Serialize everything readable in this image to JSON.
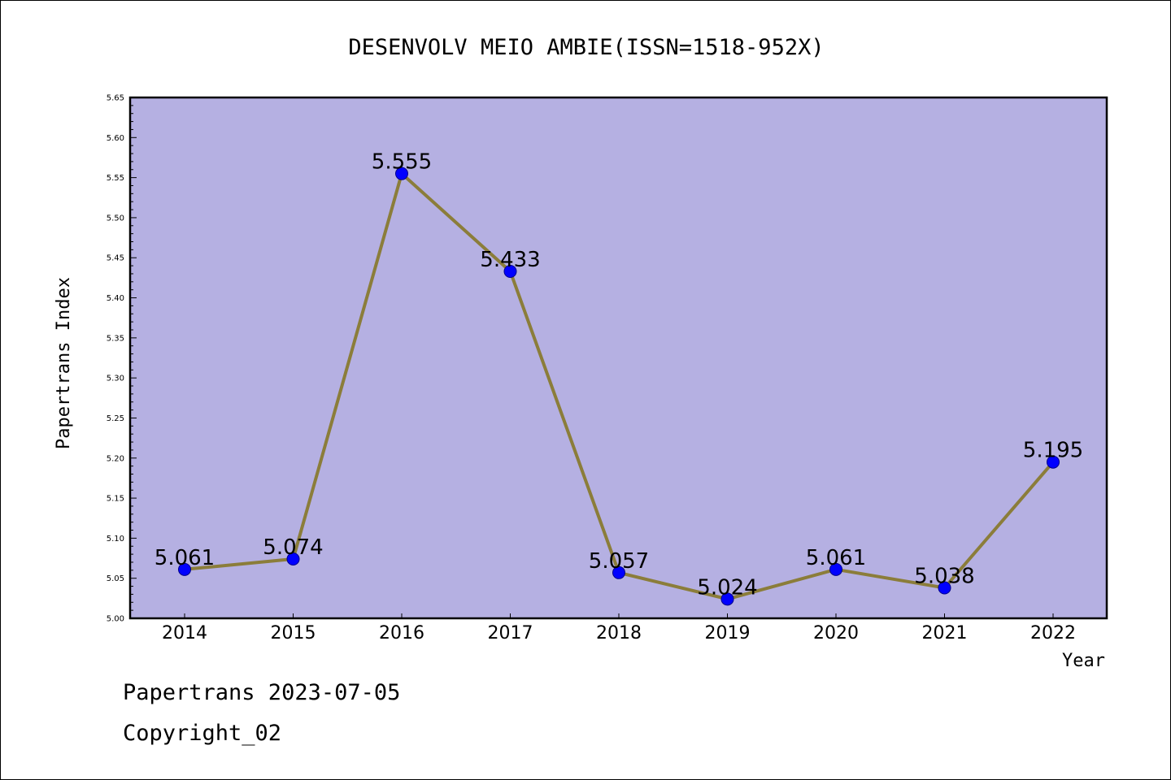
{
  "chart_data": {
    "type": "line",
    "title": "DESENVOLV MEIO AMBIE(ISSN=1518-952X)",
    "xlabel": "Year",
    "ylabel": "Papertrans Index",
    "categories": [
      "2014",
      "2015",
      "2016",
      "2017",
      "2018",
      "2019",
      "2020",
      "2021",
      "2022"
    ],
    "series": [
      {
        "values": [
          5.061,
          5.074,
          5.555,
          5.433,
          5.057,
          5.024,
          5.061,
          5.038,
          5.195
        ],
        "labels": [
          "5.061",
          "5.074",
          "5.555",
          "5.433",
          "5.057",
          "5.024",
          "5.061",
          "5.038",
          "5.195"
        ]
      }
    ],
    "ylim": [
      5.0,
      5.65
    ],
    "yticks": [
      "5.00",
      "5.05",
      "5.10",
      "5.15",
      "5.20",
      "5.25",
      "5.30",
      "5.35",
      "5.40",
      "5.45",
      "5.50",
      "5.55",
      "5.60",
      "5.65"
    ],
    "grid": false,
    "legend": "none",
    "colors": {
      "plot_background": "#b5b0e2",
      "line": "#8b7d3a",
      "marker": "#0000ff"
    }
  },
  "footer": {
    "date_text": "Papertrans 2023-07-05",
    "copyright_text": "Copyright_02"
  }
}
